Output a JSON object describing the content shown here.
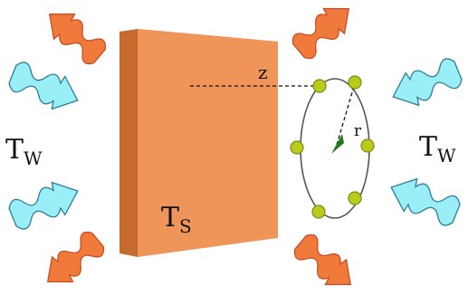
{
  "labels": {
    "wall_temp_left": "T",
    "wall_temp_left_sub": "W",
    "wall_temp_right": "T",
    "wall_temp_right_sub": "W",
    "slab_temp": "T",
    "slab_temp_sub": "S",
    "distance": "z",
    "radius": "r"
  },
  "colors": {
    "slab_front": "#f0955a",
    "slab_side": "#c66a2e",
    "slab_top": "#e07d3e",
    "hot_wave_fill": "#f07a3c",
    "hot_wave_edge": "#c84a1e",
    "cold_wave_fill": "#9aeef8",
    "cold_wave_edge": "#2d7f95",
    "particle": "#b9cc1c",
    "particle_edge": "#7e8c0e",
    "center_marker": "#1e7a23",
    "ring": "#555555"
  },
  "icons": {
    "hot_radiation": "wavy-arrow-icon",
    "cold_radiation": "wavy-arrow-icon",
    "center_marker": "triangle-icon"
  }
}
